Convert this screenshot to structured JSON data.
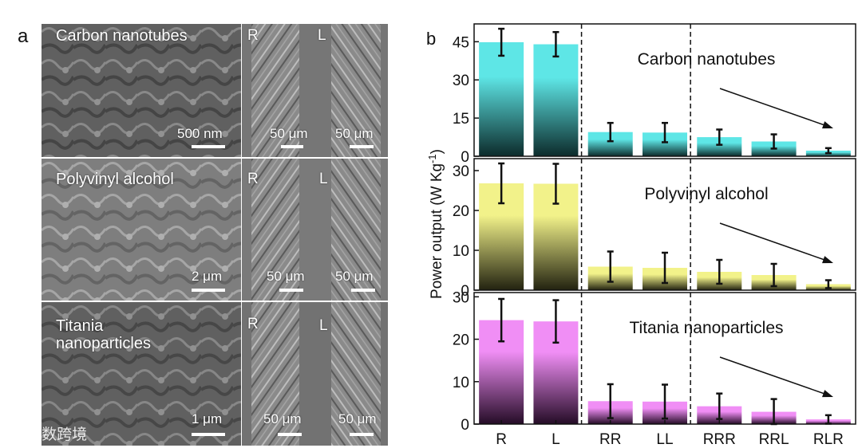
{
  "panel_a": {
    "label": "a",
    "rows": [
      {
        "material": "Carbon nanotubes",
        "left_tag": "R",
        "right_tag": "L",
        "scale_main": "500 nm",
        "scale_left": "50 μm",
        "scale_right": "50 μm"
      },
      {
        "material": "Polyvinyl alcohol",
        "left_tag": "R",
        "right_tag": "L",
        "scale_main": "2 μm",
        "scale_left": "50 μm",
        "scale_right": "50 μm"
      },
      {
        "material": "Titania\nnanoparticles",
        "left_tag": "R",
        "right_tag": "L",
        "scale_main": "1 μm",
        "scale_left": "50 μm",
        "scale_right": "50 μm"
      }
    ],
    "watermark": "大数跨境"
  },
  "chart_data": {
    "type": "bar",
    "panel_label": "b",
    "categories": [
      "R",
      "L",
      "RR",
      "LL",
      "RRR",
      "RRL",
      "RLR"
    ],
    "ylabel": "Power output (W Kg-1)",
    "ylabel_main": "Power output (W Kg",
    "ylabel_sup": "-1",
    "ylabel_close": ")",
    "separators_after": [
      2,
      4
    ],
    "subplots": [
      {
        "title": "Carbon nanotubes",
        "color": "#5ee6e6",
        "dark": "#0c2b2b",
        "ylim": [
          0,
          52
        ],
        "yticks": [
          0,
          15,
          30,
          45
        ],
        "values": [
          44.8,
          44.0,
          9.5,
          9.3,
          7.5,
          5.8,
          2.2
        ],
        "errors": [
          5.3,
          4.8,
          3.6,
          3.8,
          3.0,
          2.8,
          1.0
        ]
      },
      {
        "title": "Polyvinyl alcohol",
        "color": "#f2f28a",
        "dark": "#222210",
        "ylim": [
          0,
          33
        ],
        "yticks": [
          0,
          10,
          20,
          30
        ],
        "values": [
          26.8,
          26.7,
          5.9,
          5.6,
          4.6,
          3.8,
          1.5
        ],
        "errors": [
          5.0,
          5.0,
          3.8,
          3.8,
          3.0,
          2.8,
          1.0
        ]
      },
      {
        "title": "Titania nanoparticles",
        "color": "#f08ef5",
        "dark": "#240c26",
        "ylim": [
          0,
          31
        ],
        "yticks": [
          0,
          10,
          20,
          30
        ],
        "values": [
          24.5,
          24.2,
          5.4,
          5.3,
          4.2,
          2.9,
          1.1
        ],
        "errors": [
          5.0,
          5.0,
          4.0,
          4.0,
          3.0,
          3.0,
          1.0
        ]
      }
    ]
  }
}
